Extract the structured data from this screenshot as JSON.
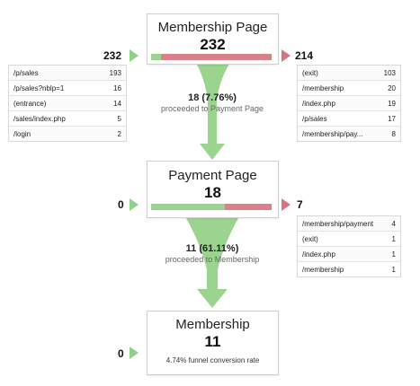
{
  "colors": {
    "green": "#8fd08a",
    "red": "#d9737f"
  },
  "steps": [
    {
      "title": "Membership Page",
      "count": "232",
      "entries_total": "232",
      "exits_total": "214",
      "proceed_fraction": 0.0776,
      "entries": [
        {
          "label": "/p/sales",
          "value": "193"
        },
        {
          "label": "/p/sales?nblp=1",
          "value": "16"
        },
        {
          "label": "(entrance)",
          "value": "14"
        },
        {
          "label": "/sales/index.php",
          "value": "5"
        },
        {
          "label": "/login",
          "value": "2"
        }
      ],
      "exits": [
        {
          "label": "(exit)",
          "value": "103"
        },
        {
          "label": "/membership",
          "value": "20"
        },
        {
          "label": "/index.php",
          "value": "19"
        },
        {
          "label": "/p/sales",
          "value": "17"
        },
        {
          "label": "/membership/pay...",
          "value": "8"
        }
      ]
    },
    {
      "title": "Payment Page",
      "count": "18",
      "entries_total": "0",
      "exits_total": "7",
      "proceed_fraction": 0.6111,
      "exits": [
        {
          "label": "/membership/payment",
          "value": "4"
        },
        {
          "label": "(exit)",
          "value": "1"
        },
        {
          "label": "/index.php",
          "value": "1"
        },
        {
          "label": "/membership",
          "value": "1"
        }
      ]
    },
    {
      "title": "Membership",
      "count": "11",
      "entries_total": "0",
      "note": "4.74% funnel conversion rate"
    }
  ],
  "flows": [
    {
      "main": "18 (7.76%)",
      "sub": "proceeded to Payment Page"
    },
    {
      "main": "11 (61.11%)",
      "sub": "proceeded to Membership"
    }
  ]
}
